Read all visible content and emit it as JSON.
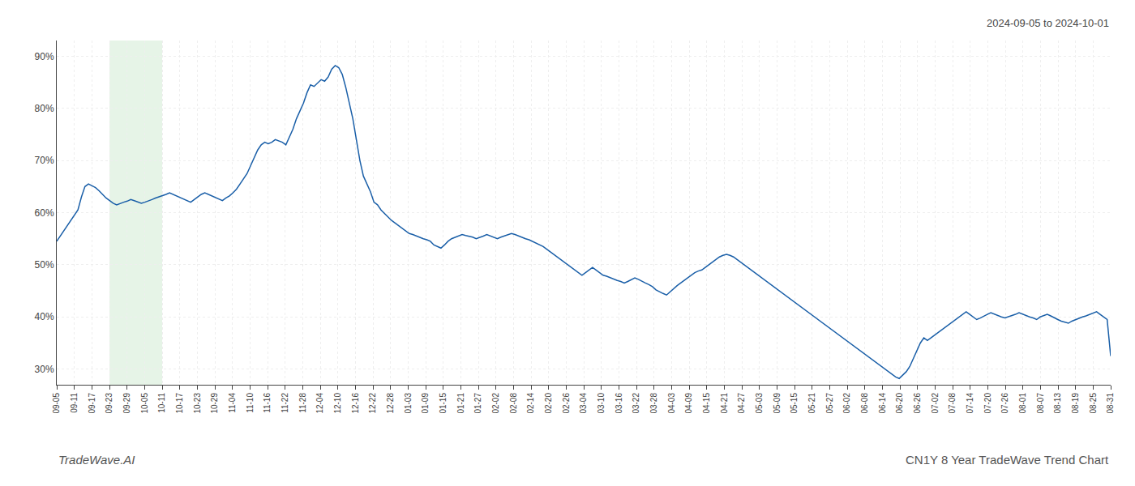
{
  "chart_data": {
    "type": "line",
    "title": "CN1Y 8 Year TradeWave Trend Chart",
    "subtitle": "2024-09-05 to 2024-10-01",
    "annotations": [
      "TradeWave.AI"
    ],
    "color": "#1a5fa8",
    "grid": true,
    "span": [
      3,
      6
    ],
    "span_color": "#c8e6c9",
    "xlim": [
      0,
      60
    ],
    "xticks": [
      {
        "value": 0,
        "label": "09-05"
      },
      {
        "value": 1,
        "label": "09-11"
      },
      {
        "value": 2,
        "label": "09-17"
      },
      {
        "value": 3,
        "label": "09-23"
      },
      {
        "value": 4,
        "label": "09-29"
      },
      {
        "value": 5,
        "label": "10-05"
      },
      {
        "value": 6,
        "label": "10-11"
      },
      {
        "value": 7,
        "label": "10-17"
      },
      {
        "value": 8,
        "label": "10-23"
      },
      {
        "value": 9,
        "label": "10-29"
      },
      {
        "value": 10,
        "label": "11-04"
      },
      {
        "value": 11,
        "label": "11-10"
      },
      {
        "value": 12,
        "label": "11-16"
      },
      {
        "value": 13,
        "label": "11-22"
      },
      {
        "value": 14,
        "label": "11-28"
      },
      {
        "value": 15,
        "label": "12-04"
      },
      {
        "value": 16,
        "label": "12-10"
      },
      {
        "value": 17,
        "label": "12-16"
      },
      {
        "value": 18,
        "label": "12-22"
      },
      {
        "value": 19,
        "label": "12-28"
      },
      {
        "value": 20,
        "label": "01-03"
      },
      {
        "value": 21,
        "label": "01-09"
      },
      {
        "value": 22,
        "label": "01-15"
      },
      {
        "value": 23,
        "label": "01-21"
      },
      {
        "value": 24,
        "label": "01-27"
      },
      {
        "value": 25,
        "label": "02-02"
      },
      {
        "value": 26,
        "label": "02-08"
      },
      {
        "value": 27,
        "label": "02-14"
      },
      {
        "value": 28,
        "label": "02-20"
      },
      {
        "value": 29,
        "label": "02-26"
      },
      {
        "value": 30,
        "label": "03-04"
      },
      {
        "value": 31,
        "label": "03-10"
      },
      {
        "value": 32,
        "label": "03-16"
      },
      {
        "value": 33,
        "label": "03-22"
      },
      {
        "value": 34,
        "label": "03-28"
      },
      {
        "value": 35,
        "label": "04-03"
      },
      {
        "value": 36,
        "label": "04-09"
      },
      {
        "value": 37,
        "label": "04-15"
      },
      {
        "value": 38,
        "label": "04-21"
      },
      {
        "value": 39,
        "label": "04-27"
      },
      {
        "value": 40,
        "label": "05-03"
      },
      {
        "value": 41,
        "label": "05-09"
      },
      {
        "value": 42,
        "label": "05-15"
      },
      {
        "value": 43,
        "label": "05-21"
      },
      {
        "value": 44,
        "label": "05-27"
      },
      {
        "value": 45,
        "label": "06-02"
      },
      {
        "value": 46,
        "label": "06-08"
      },
      {
        "value": 47,
        "label": "06-14"
      },
      {
        "value": 48,
        "label": "06-20"
      },
      {
        "value": 49,
        "label": "06-26"
      },
      {
        "value": 50,
        "label": "07-02"
      },
      {
        "value": 51,
        "label": "07-08"
      },
      {
        "value": 52,
        "label": "07-14"
      },
      {
        "value": 53,
        "label": "07-20"
      },
      {
        "value": 54,
        "label": "07-26"
      },
      {
        "value": 55,
        "label": "08-01"
      },
      {
        "value": 56,
        "label": "08-07"
      },
      {
        "value": 57,
        "label": "08-13"
      },
      {
        "value": 58,
        "label": "08-19"
      },
      {
        "value": 59,
        "label": "08-25"
      },
      {
        "value": 60,
        "label": "08-31"
      }
    ],
    "ylim": [
      27,
      93
    ],
    "yticks": [
      {
        "value": 30,
        "label": "30%"
      },
      {
        "value": 40,
        "label": "40%"
      },
      {
        "value": 50,
        "label": "50%"
      },
      {
        "value": 60,
        "label": "60%"
      },
      {
        "value": 70,
        "label": "70%"
      },
      {
        "value": 80,
        "label": "80%"
      },
      {
        "value": 90,
        "label": "90%"
      }
    ],
    "values": [
      54.5,
      55.5,
      56.5,
      57.5,
      58.5,
      59.5,
      60.5,
      63.0,
      65.0,
      65.5,
      65.2,
      64.8,
      64.2,
      63.5,
      62.8,
      62.3,
      61.8,
      61.5,
      61.8,
      62.0,
      62.2,
      62.5,
      62.3,
      62.0,
      61.8,
      62.0,
      62.2,
      62.5,
      62.8,
      63.0,
      63.2,
      63.5,
      63.8,
      63.5,
      63.2,
      62.8,
      62.5,
      62.3,
      62.0,
      62.5,
      63.0,
      63.5,
      63.8,
      63.5,
      63.2,
      62.8,
      62.5,
      62.3,
      62.8,
      63.2,
      63.8,
      64.5,
      65.5,
      66.5,
      67.5,
      69.0,
      70.5,
      72.0,
      73.0,
      73.5,
      73.2,
      73.5,
      74.0,
      73.8,
      73.5,
      73.0,
      74.5,
      76.0,
      78.0,
      79.5,
      81.0,
      83.0,
      84.5,
      84.2,
      84.8,
      85.5,
      85.2,
      86.0,
      87.5,
      88.2,
      87.8,
      86.5,
      84.0,
      81.0,
      78.0,
      74.0,
      70.0,
      67.0,
      65.5,
      64.0,
      62.0,
      61.5,
      60.5,
      59.8,
      59.2,
      58.5,
      58.0,
      57.5,
      57.0,
      56.5,
      56.0,
      55.8,
      55.5,
      55.2,
      55.0,
      54.8,
      54.5,
      53.8,
      53.5,
      53.2,
      53.8,
      54.5,
      55.0,
      55.3,
      55.5,
      55.8,
      55.6,
      55.5,
      55.3,
      55.0,
      55.2,
      55.5,
      55.8,
      55.5,
      55.2,
      55.0,
      55.3,
      55.5,
      55.8,
      56.0,
      55.8,
      55.5,
      55.2,
      55.0,
      54.8,
      54.5,
      54.2,
      53.8,
      53.5,
      53.0,
      52.5,
      52.0,
      51.5,
      51.0,
      50.5,
      50.0,
      49.5,
      49.0,
      48.5,
      48.0,
      48.5,
      49.0,
      49.5,
      49.0,
      48.5,
      48.0,
      47.8,
      47.5,
      47.2,
      47.0,
      46.8,
      46.5,
      46.8,
      47.2,
      47.5,
      47.2,
      46.8,
      46.5,
      46.2,
      45.8,
      45.2,
      44.8,
      44.5,
      44.2,
      44.8,
      45.5,
      46.0,
      46.5,
      47.0,
      47.5,
      48.0,
      48.5,
      48.8,
      49.0,
      49.5,
      50.0,
      50.5,
      51.0,
      51.5,
      51.8,
      52.0,
      51.8,
      51.5,
      51.0,
      50.5,
      50.0,
      49.5,
      49.0,
      48.5,
      48.0,
      47.5,
      47.0,
      46.5,
      46.0,
      45.5,
      45.0,
      44.5,
      44.0,
      43.5,
      43.0,
      42.5,
      42.0,
      41.5,
      41.0,
      40.5,
      40.0,
      39.5,
      39.0,
      38.5,
      38.0,
      37.5,
      37.0,
      36.5,
      36.0,
      35.5,
      35.0,
      34.5,
      34.0,
      33.5,
      33.0,
      32.5,
      32.0,
      31.5,
      31.0,
      30.5,
      30.0,
      29.5,
      29.0,
      28.5,
      28.2,
      28.8,
      29.5,
      30.5,
      32.0,
      33.5,
      35.0,
      36.0,
      35.5,
      36.0,
      36.5,
      37.0,
      37.5,
      38.0,
      38.5,
      39.0,
      39.5,
      40.0,
      40.5,
      41.0,
      40.5,
      40.0,
      39.5,
      39.8,
      40.2,
      40.5,
      40.8,
      40.5,
      40.2,
      40.0,
      39.8,
      40.0,
      40.2,
      40.5,
      40.8,
      40.5,
      40.2,
      40.0,
      39.8,
      39.5,
      40.0,
      40.3,
      40.5,
      40.2,
      39.8,
      39.5,
      39.2,
      39.0,
      38.8,
      39.2,
      39.5,
      39.8,
      40.0,
      40.2,
      40.5,
      40.8,
      41.0,
      40.5,
      40.0,
      39.5,
      32.5
    ]
  }
}
